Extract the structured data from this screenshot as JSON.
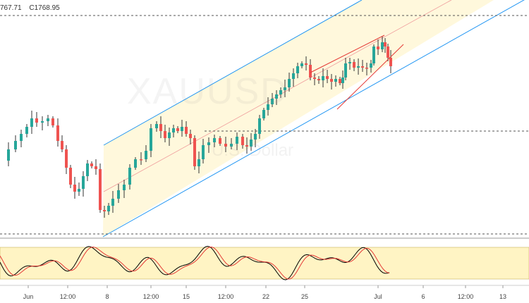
{
  "header": {
    "ohlc_values": [
      "767.71",
      "C1768.95"
    ]
  },
  "watermark": {
    "symbol": "XAUUSD",
    "subtitle": "U.S. Dollar"
  },
  "colors": {
    "bull": "#26a69a",
    "bear": "#ef5350",
    "wick": "#333333",
    "channel_line": "#2196f3",
    "channel_fill": "#fff7d6",
    "wedge": "#e53935",
    "stoch_k": "#000000",
    "stoch_d": "#e53935",
    "stoch_band": "#fff4c4"
  },
  "x_axis_labels": [
    "Jun",
    "12:00",
    "8",
    "12:00",
    "15",
    "12:00",
    "22",
    "25",
    "Jul",
    "6",
    "12:00",
    "13"
  ]
}
